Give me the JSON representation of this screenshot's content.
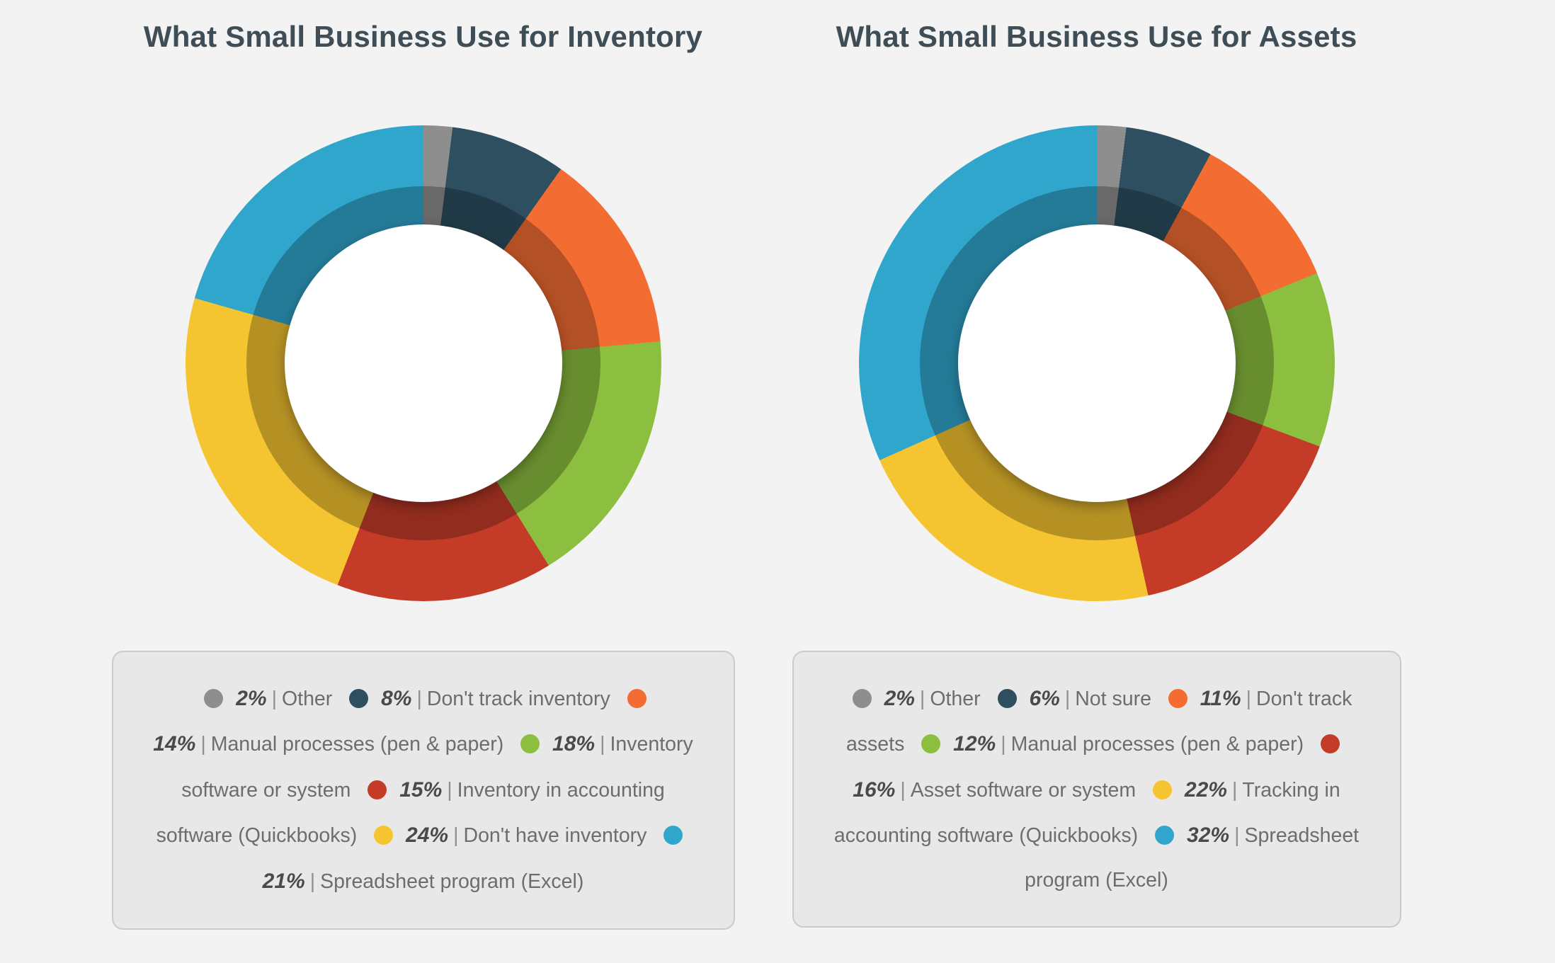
{
  "page": {
    "background_color": "#f4f3f3",
    "legend_background": "#e9e8e8",
    "legend_border": "#cbcbcb"
  },
  "chart_data": [
    {
      "type": "pie",
      "subtype": "donut",
      "title": "What Small Business Use for Inventory",
      "legend_position": "bottom",
      "start_angle_deg": 0,
      "segments": [
        {
          "label": "Other",
          "value": 2,
          "color": "#8e8e8e"
        },
        {
          "label": "Don't track inventory",
          "value": 8,
          "color": "#2d4f60"
        },
        {
          "label": "Manual processes (pen & paper)",
          "value": 14,
          "color": "#f36c32"
        },
        {
          "label": "Inventory software or system",
          "value": 18,
          "color": "#8cbf3f"
        },
        {
          "label": "Inventory in accounting software (Quickbooks)",
          "value": 15,
          "color": "#c43b28"
        },
        {
          "label": "Don't have inventory",
          "value": 24,
          "color": "#f5c431"
        },
        {
          "label": "Spreadsheet program (Excel)",
          "value": 21,
          "color": "#31a6cd"
        }
      ]
    },
    {
      "type": "pie",
      "subtype": "donut",
      "title": "What Small Business Use for Assets",
      "legend_position": "bottom",
      "start_angle_deg": 0,
      "segments": [
        {
          "label": "Other",
          "value": 2,
          "color": "#8e8e8e"
        },
        {
          "label": "Not sure",
          "value": 6,
          "color": "#2d4f60"
        },
        {
          "label": "Don't track assets",
          "value": 11,
          "color": "#f36c32"
        },
        {
          "label": "Manual processes (pen & paper)",
          "value": 12,
          "color": "#8cbf3f"
        },
        {
          "label": "Asset software or system",
          "value": 16,
          "color": "#c43b28"
        },
        {
          "label": "Tracking in accounting software (Quickbooks)",
          "value": 22,
          "color": "#f5c431"
        },
        {
          "label": "Spreadsheet program (Excel)",
          "value": 32,
          "color": "#31a6cd"
        }
      ]
    }
  ]
}
